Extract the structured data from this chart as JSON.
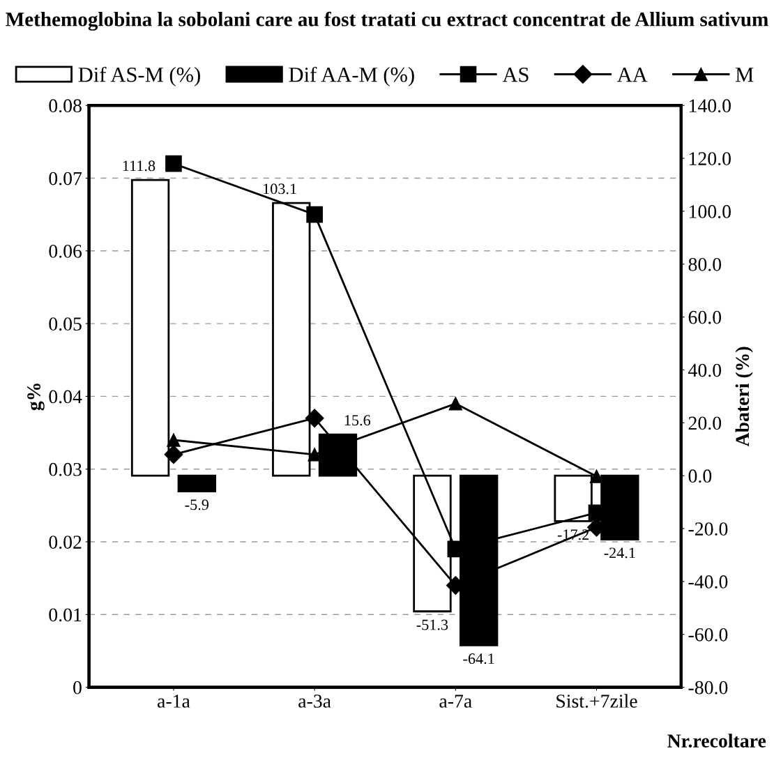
{
  "chart_data": {
    "type": "line",
    "title": "Methemoglobina la sobolani care au fost tratati cu extract concentrat de Allium sativum",
    "categories": [
      "a-1a",
      "a-3a",
      "a-7a",
      "Sist.+7zile"
    ],
    "xlabel": "Nr.recoltare",
    "ylabel": "g%",
    "y2label": "Abateri (%)",
    "ylim": [
      0,
      0.08
    ],
    "yticks": [
      0,
      0.01,
      0.02,
      0.03,
      0.04,
      0.05,
      0.06,
      0.07,
      0.08
    ],
    "y2lim": [
      -80,
      140
    ],
    "y2ticks": [
      {
        "value": -80,
        "label": "-80.0"
      },
      {
        "value": -60,
        "label": "-60.0"
      },
      {
        "value": -40,
        "label": "-40.0"
      },
      {
        "value": -20,
        "label": "-20.0"
      },
      {
        "value": 0,
        "label": "0.0"
      },
      {
        "value": 20,
        "label": "20.0"
      },
      {
        "value": 40,
        "label": "40.0"
      },
      {
        "value": 60,
        "label": "60.0"
      },
      {
        "value": 80,
        "label": "80.0"
      },
      {
        "value": 100,
        "label": "100.0"
      },
      {
        "value": 120,
        "label": "120.0"
      },
      {
        "value": 140,
        "label": "140.0"
      }
    ],
    "series": [
      {
        "name": "Dif AS-M (%)",
        "type": "bar",
        "axis": "y2",
        "color": "#ffffff",
        "values": [
          111.8,
          103.1,
          -51.3,
          -17.2
        ],
        "data_labels": true
      },
      {
        "name": "Dif AA-M (%)",
        "type": "bar",
        "axis": "y2",
        "color": "#000000",
        "values": [
          -5.9,
          15.6,
          -64.1,
          -24.1
        ],
        "data_labels": true
      },
      {
        "name": "AS",
        "color": "#000000",
        "marker": "square",
        "values": [
          0.072,
          0.065,
          0.019,
          0.024
        ]
      },
      {
        "name": "AA",
        "color": "#000000",
        "marker": "diamond",
        "values": [
          0.032,
          0.037,
          0.014,
          0.022
        ]
      },
      {
        "name": "M",
        "color": "#000000",
        "marker": "triangle",
        "values": [
          0.034,
          0.032,
          0.039,
          0.029
        ]
      }
    ],
    "grid": "y",
    "legend": "top"
  }
}
